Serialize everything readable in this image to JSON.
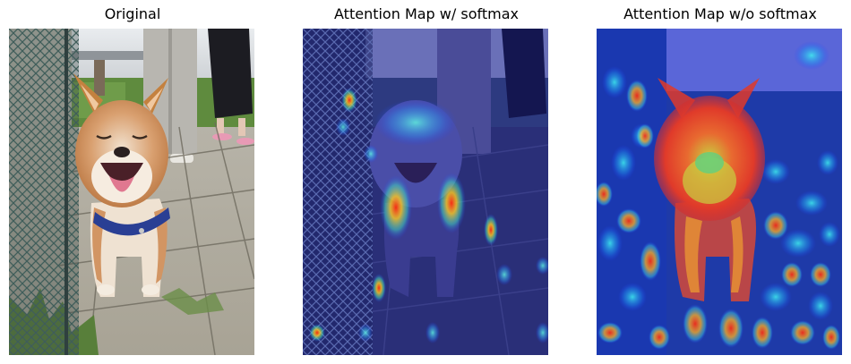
{
  "panels": [
    {
      "title": "Original"
    },
    {
      "title": "Attention Map w/ softmax"
    },
    {
      "title": "Attention Map w/o softmax"
    }
  ]
}
